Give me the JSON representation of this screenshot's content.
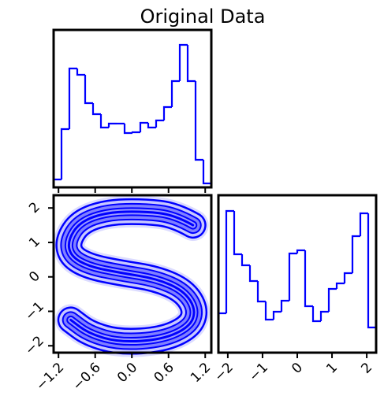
{
  "chart_data": [
    {
      "type": "histogram",
      "title": "Original Data",
      "color": "#0000ff",
      "bins": [
        -1.28,
        -1.151,
        -1.022,
        -0.893,
        -0.764,
        -0.635,
        -0.506,
        -0.377,
        -0.248,
        -0.119,
        0.01,
        0.139,
        0.268,
        0.397,
        0.526,
        0.655,
        0.784,
        0.913,
        1.042,
        1.171,
        1.3
      ],
      "values": [
        10,
        74,
        151,
        143,
        107,
        93,
        76,
        81,
        81,
        69,
        70,
        82,
        76,
        85,
        102,
        135,
        181,
        135,
        35,
        5
      ],
      "xlim": [
        -1.28,
        1.3
      ],
      "ylim": [
        0,
        200
      ],
      "xticks": [
        -1.2,
        -0.6,
        0,
        0.6,
        1.2
      ]
    },
    {
      "type": "contour",
      "color": "#0000ff",
      "x": [
        1.0,
        0.7,
        0.2,
        -0.4,
        -0.85,
        -1.05,
        -1.0,
        -0.7,
        -0.2,
        0.4,
        0.85,
        1.05,
        0.95,
        0.5,
        -0.2,
        -0.7,
        -1.0
      ],
      "y": [
        1.5,
        1.8,
        1.9,
        1.88,
        1.6,
        1.05,
        0.6,
        0.3,
        0.12,
        -0.05,
        -0.4,
        -0.95,
        -1.45,
        -1.82,
        -1.9,
        -1.65,
        -1.25
      ],
      "xlim": [
        -1.28,
        1.3
      ],
      "ylim": [
        -2.2,
        2.37
      ],
      "xticks": [
        {
          "value": -1.2,
          "label": "−1.2"
        },
        {
          "value": -0.6,
          "label": "−0.6"
        },
        {
          "value": 0,
          "label": "0.0"
        },
        {
          "value": 0.6,
          "label": "0.6"
        },
        {
          "value": 1.2,
          "label": "1.2"
        }
      ],
      "yticks": [
        {
          "value": -2,
          "label": "−2"
        },
        {
          "value": -1,
          "label": "−1"
        },
        0,
        1,
        2
      ]
    },
    {
      "type": "histogram",
      "color": "#0000ff",
      "bins": [
        -2.27,
        -2.043,
        -1.816,
        -1.589,
        -1.362,
        -1.135,
        -0.908,
        -0.681,
        -0.454,
        -0.227,
        0,
        0.227,
        0.454,
        0.681,
        0.908,
        1.135,
        1.362,
        1.589,
        1.816,
        2.043,
        2.27
      ],
      "values": [
        50,
        180,
        125,
        111,
        91,
        65,
        42,
        52,
        66,
        126,
        130,
        59,
        40,
        52,
        81,
        88,
        101,
        148,
        177,
        32
      ],
      "xlim": [
        -2.27,
        2.27
      ],
      "ylim": [
        0,
        200
      ],
      "xticks": [
        {
          "value": -2,
          "label": "−2"
        },
        {
          "value": -1,
          "label": "−1"
        },
        0,
        1,
        2
      ]
    }
  ]
}
